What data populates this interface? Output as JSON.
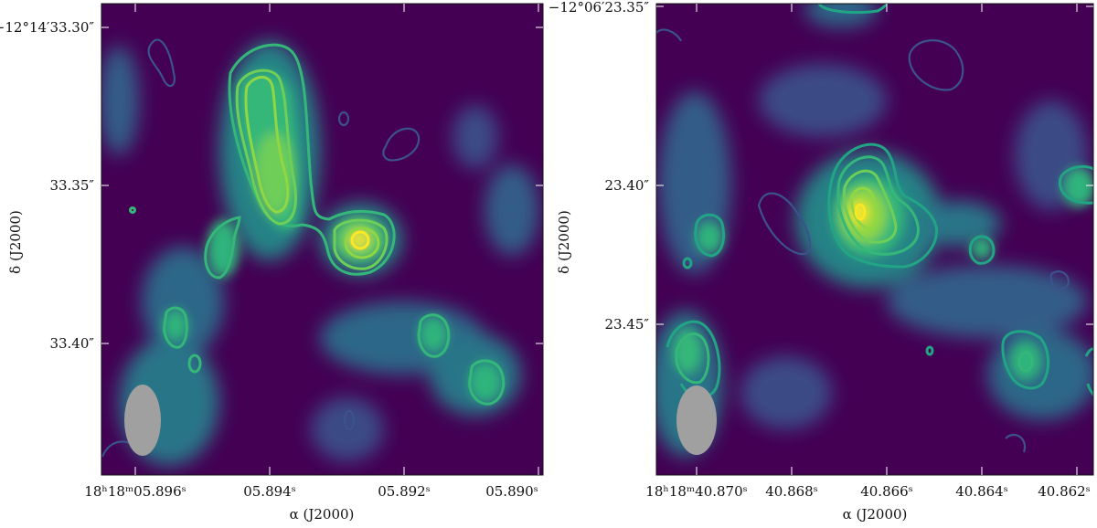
{
  "panels": [
    {
      "y_ticks": [
        "−12°14′33.30″",
        "33.35″",
        "33.40″"
      ],
      "x_ticks": [
        "18ʰ18ᵐ05.896ˢ",
        "05.894ˢ",
        "05.892ˢ",
        "05.890ˢ"
      ],
      "x_label": "α (J2000)",
      "y_label": "δ (J2000)"
    },
    {
      "y_ticks": [
        "−12°06′23.35″",
        "23.40″",
        "23.45″"
      ],
      "x_ticks": [
        "18ʰ18ᵐ40.870ˢ",
        "40.868ˢ",
        "40.866ˢ",
        "40.864ˢ",
        "40.862ˢ"
      ],
      "x_label": "α (J2000)",
      "y_label": "δ (J2000)"
    }
  ],
  "colors": {
    "background": "#440154",
    "contour_low": "#3b528b",
    "contour_mid": "#35b779",
    "contour_high": "#90d743",
    "contour_peak": "#fde725",
    "beam": "#a0a0a0"
  }
}
